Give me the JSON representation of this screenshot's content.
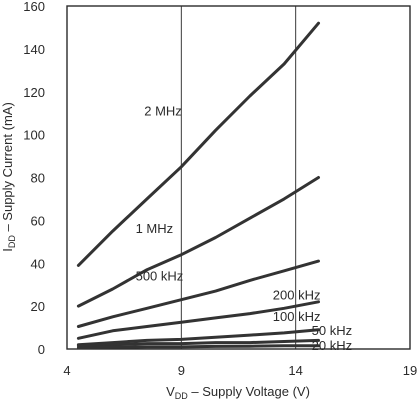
{
  "chart_data": {
    "type": "line",
    "xlabel_main": "V",
    "xlabel_sub": "DD",
    "xlabel_rest": " – Supply Voltage (V)",
    "ylabel_main": "I",
    "ylabel_sub": "DD",
    "ylabel_rest": " – Supply Current (mA)",
    "xlim": [
      4,
      19
    ],
    "ylim": [
      0,
      160
    ],
    "xticks": [
      4,
      9,
      14,
      19
    ],
    "yticks": [
      0,
      20,
      40,
      60,
      80,
      100,
      120,
      140,
      160
    ],
    "grid": true,
    "line_color": "#333333",
    "series": [
      {
        "name": "2 MHz",
        "x": [
          4.5,
          6,
          7.5,
          9,
          10.5,
          12,
          13.5,
          15
        ],
        "y": [
          39,
          55,
          70,
          85,
          102,
          118,
          133,
          152
        ]
      },
      {
        "name": "1 MHz",
        "x": [
          4.5,
          6,
          7.5,
          9,
          10.5,
          12,
          13.5,
          15
        ],
        "y": [
          20,
          28,
          37,
          44,
          52,
          61,
          70,
          80
        ]
      },
      {
        "name": "500 kHz",
        "x": [
          4.5,
          6,
          7.5,
          9,
          10.5,
          12,
          13.5,
          15
        ],
        "y": [
          10.5,
          15,
          19,
          23,
          27,
          32,
          36.5,
          41
        ]
      },
      {
        "name": "200 kHz",
        "x": [
          4.5,
          6,
          7.5,
          9,
          10.5,
          12,
          13.5,
          15
        ],
        "y": [
          5,
          8.5,
          10.5,
          12.5,
          14.5,
          16.5,
          19,
          22
        ]
      },
      {
        "name": "100 kHz",
        "x": [
          4.5,
          6,
          7.5,
          9,
          10.5,
          12,
          13.5,
          15
        ],
        "y": [
          2,
          3,
          4,
          4.5,
          5.5,
          6.5,
          7.5,
          9
        ]
      },
      {
        "name": "50 kHz",
        "x": [
          4.5,
          6,
          7.5,
          9,
          10.5,
          12,
          13.5,
          15
        ],
        "y": [
          1.5,
          2,
          2.5,
          2.5,
          3,
          3,
          3.5,
          4
        ]
      },
      {
        "name": "20 kHz",
        "x": [
          4.5,
          6,
          7.5,
          9,
          10.5,
          12,
          13.5,
          15
        ],
        "y": [
          0.5,
          0.8,
          1,
          1,
          1.2,
          1.3,
          1.5,
          1.5
        ]
      }
    ]
  }
}
